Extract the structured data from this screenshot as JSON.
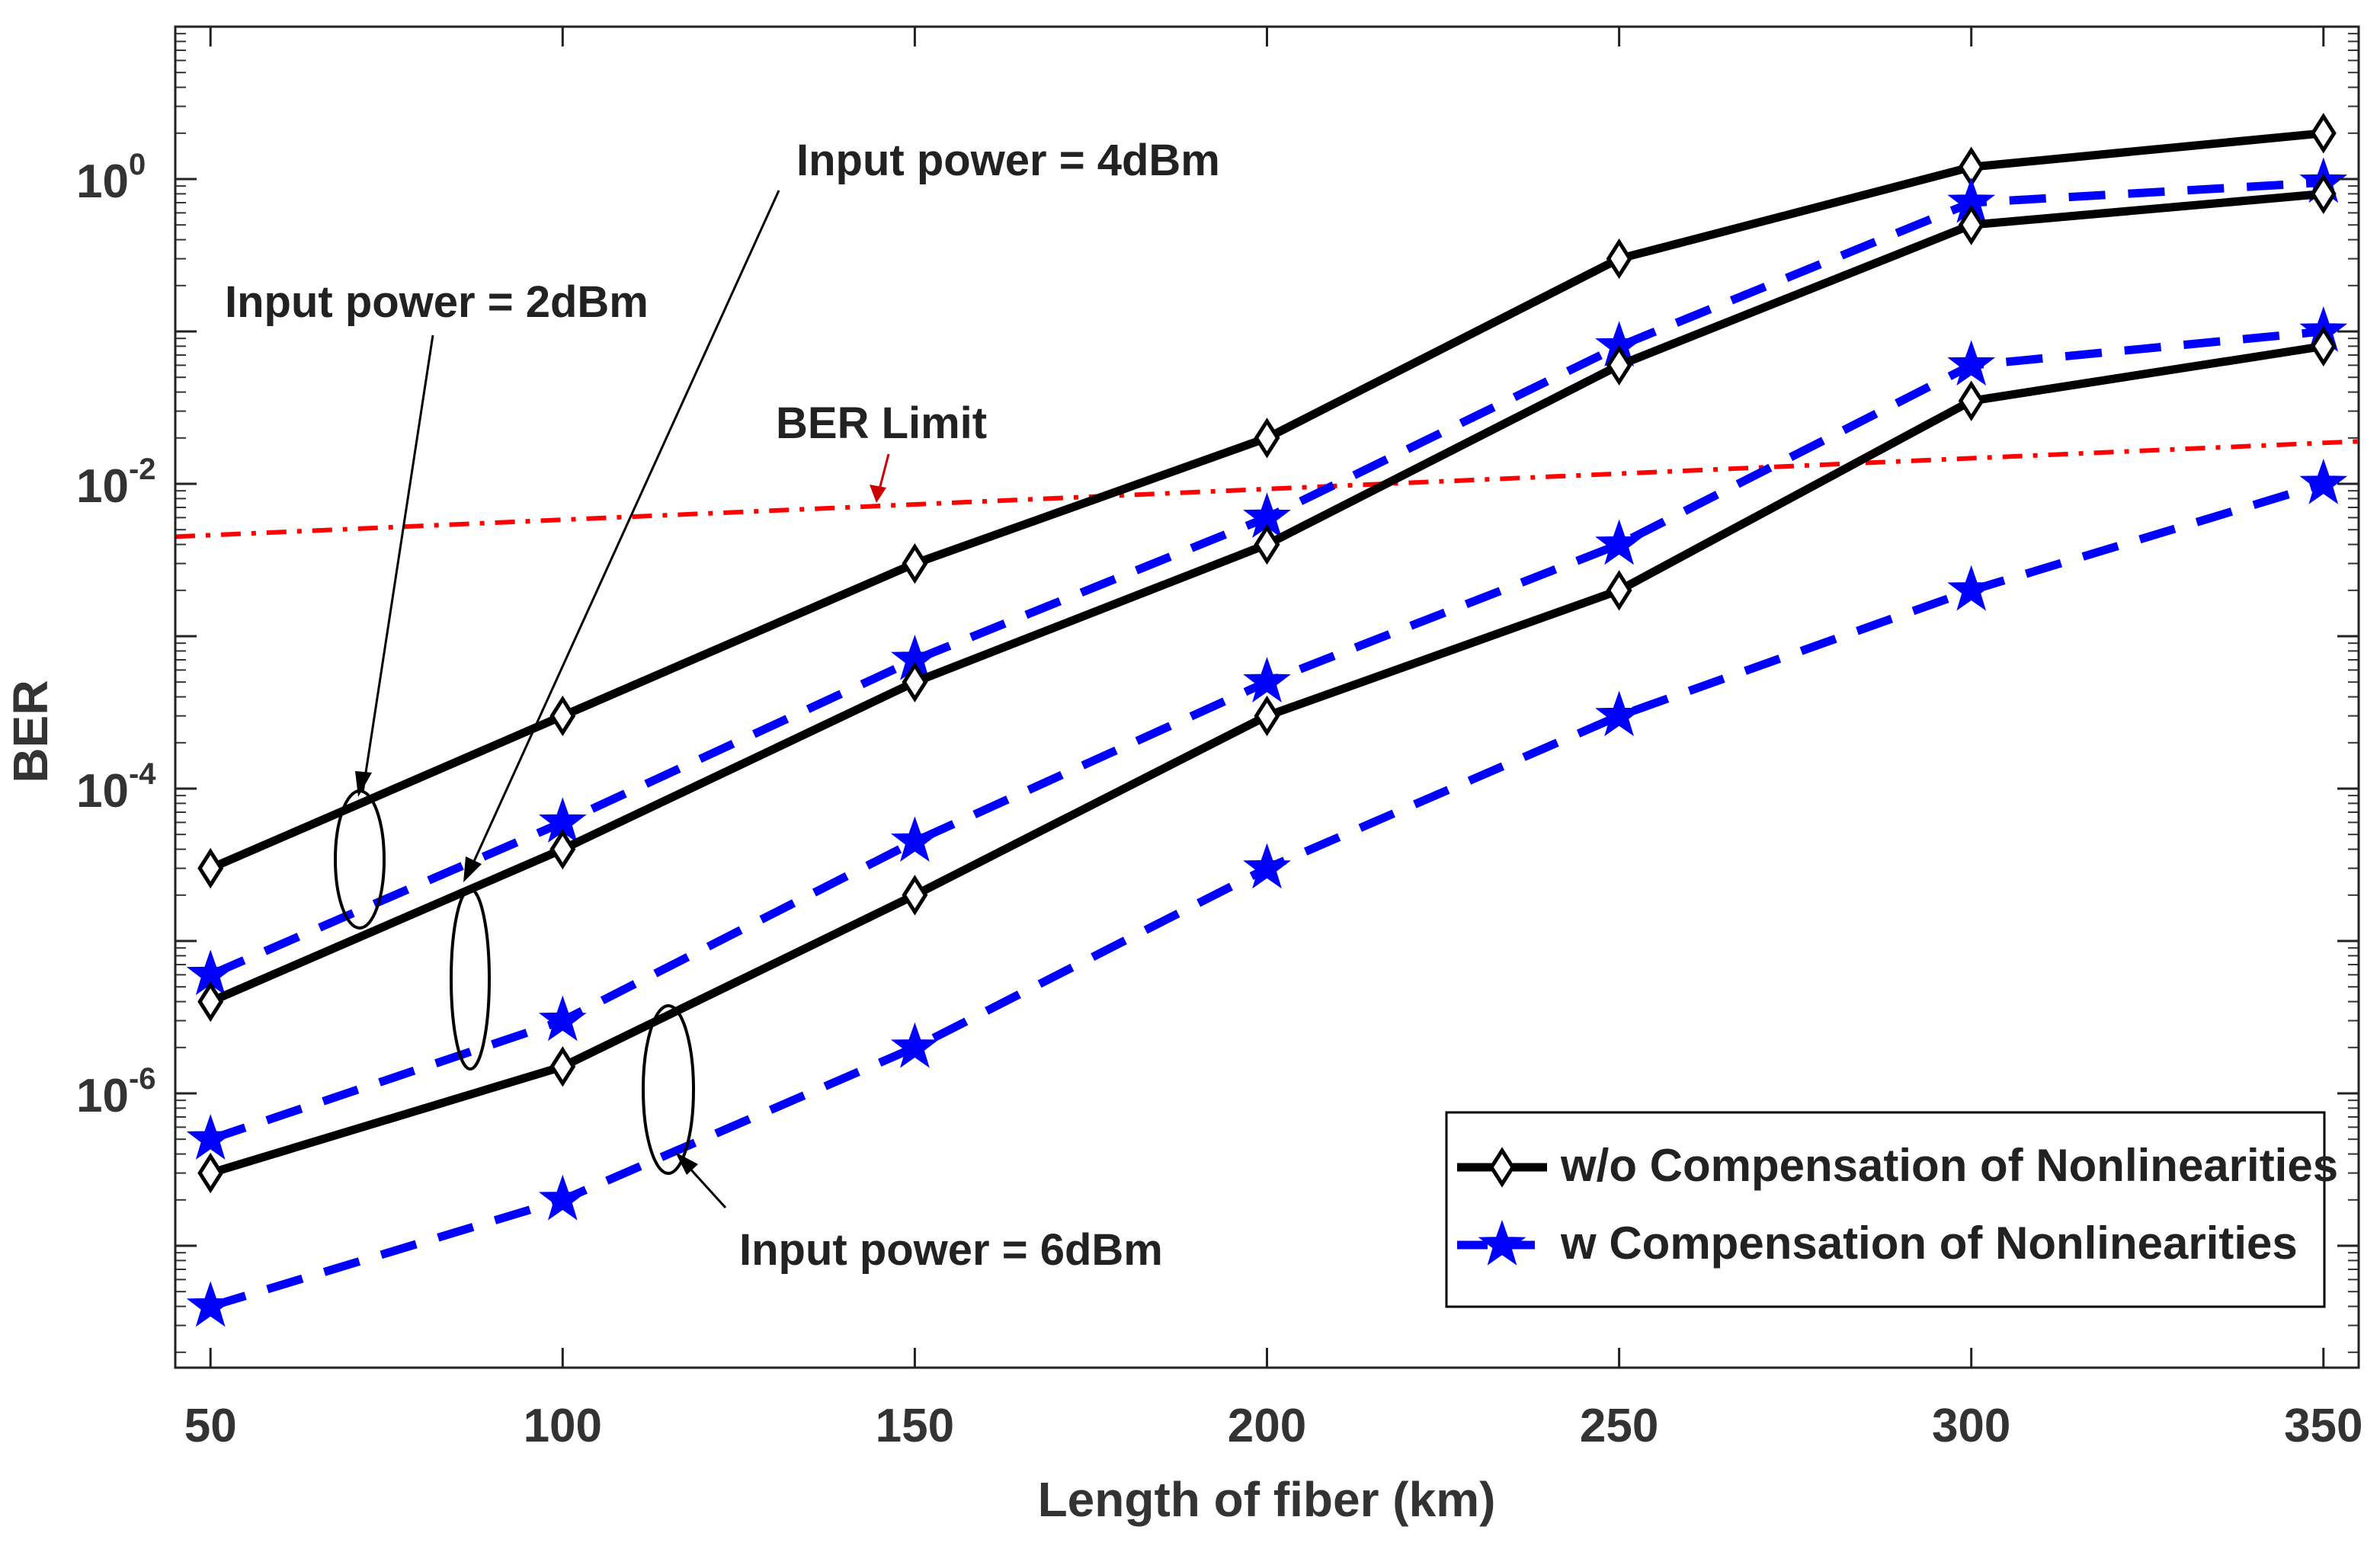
{
  "chart_data": {
    "type": "line",
    "title": "",
    "xlabel": "Length of fiber (km)",
    "ylabel": "BER",
    "yscale": "log",
    "xlim": [
      45,
      355
    ],
    "ylim_exp": [
      -7.8,
      1
    ],
    "grid": false,
    "legend_position": "bottom-right",
    "x_ticks": [
      50,
      100,
      150,
      200,
      250,
      300,
      350
    ],
    "y_ticks_exp": [
      0,
      -2,
      -4,
      -6
    ],
    "x": [
      50,
      100,
      150,
      200,
      250,
      300,
      350
    ],
    "series": [
      {
        "name": "w/o Compensation of Nonlinearities",
        "group": "Input power = 2dBm",
        "style": "wo",
        "values": [
          3e-05,
          0.0003,
          0.003,
          0.02,
          0.3,
          1.2,
          2.0
        ]
      },
      {
        "name": "w Compensation of Nonlinearities",
        "group": "Input power = 2dBm",
        "style": "w",
        "values": [
          6e-06,
          6e-05,
          0.0007,
          0.006,
          0.08,
          0.7,
          0.95
        ]
      },
      {
        "name": "w/o Compensation of Nonlinearities",
        "group": "Input power = 4dBm",
        "style": "wo",
        "values": [
          4e-06,
          4e-05,
          0.0005,
          0.004,
          0.06,
          0.5,
          0.8
        ]
      },
      {
        "name": "w Compensation of Nonlinearities",
        "group": "Input power = 4dBm",
        "style": "w",
        "values": [
          5e-07,
          3e-06,
          4.5e-05,
          0.0005,
          0.004,
          0.06,
          0.1
        ]
      },
      {
        "name": "w/o Compensation of Nonlinearities",
        "group": "Input power = 6dBm",
        "style": "wo",
        "values": [
          3e-07,
          1.5e-06,
          2e-05,
          0.0003,
          0.002,
          0.035,
          0.08
        ]
      },
      {
        "name": "w Compensation of Nonlinearities",
        "group": "Input power = 6dBm",
        "style": "w",
        "values": [
          4e-08,
          2e-07,
          2e-06,
          3e-05,
          0.0003,
          0.002,
          0.01
        ]
      }
    ],
    "ber_limit": {
      "label": "BER Limit",
      "x": [
        45,
        355
      ],
      "values": [
        0.0045,
        0.019
      ],
      "color": "#ff0000"
    },
    "annotations": {
      "p2": "Input power = 2dBm",
      "p4": "Input power = 4dBm",
      "p6": "Input power = 6dBm",
      "ber_limit": "BER Limit"
    },
    "legend": {
      "wo": "w/o Compensation of Nonlinearities",
      "w": "w Compensation of Nonlinearities"
    },
    "colors": {
      "wo": "#000000",
      "w": "#0000ff",
      "limit": "#ff0000"
    }
  }
}
